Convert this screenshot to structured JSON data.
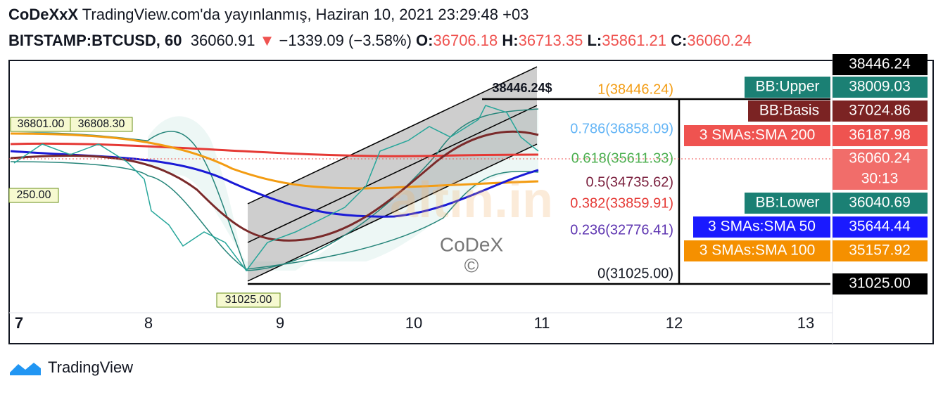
{
  "header": {
    "author": "CoDeXxX",
    "published": "TradingView.com'da yayınlanmış, Haziran 10, 2021 23:29:48 +03",
    "symbol": "BITSTAMP:BTCUSD, 60",
    "price": "36060.91",
    "arrow": "▼",
    "change": "−1339.09 (−3.58%)",
    "ohlc": [
      {
        "label": "O:",
        "value": "36706.18"
      },
      {
        "label": "H:",
        "value": "36713.35"
      },
      {
        "label": "L:",
        "value": "35861.21"
      },
      {
        "label": "C:",
        "value": "36060.24"
      }
    ]
  },
  "chart": {
    "x_labels": [
      "7",
      "8",
      "9",
      "10",
      "11",
      "12",
      "13"
    ],
    "fib_levels": [
      "1(38446.24)",
      "0.786(36858.09)",
      "0.618(35611.33)",
      "0.5(34735.62)",
      "0.382(33859.91)",
      "0.236(32776.41)",
      "0(31025.00)"
    ],
    "channel_label": "38446.24$",
    "point_labels": [
      "36801.00",
      "36808.30",
      "250.00",
      "31025.00"
    ],
    "watermark": [
      "CoDeX",
      "©"
    ],
    "axis_badges": [
      {
        "value": "38446.24"
      },
      {
        "name": "BB:Upper",
        "value": "38009.03"
      },
      {
        "name": "BB:Basis",
        "value": "37024.86"
      },
      {
        "name": "3 SMAs:SMA 200",
        "value": "36187.98"
      },
      {
        "value": "36060.24",
        "countdown": "30:13"
      },
      {
        "name": "BB:Lower",
        "value": "36040.69"
      },
      {
        "name": "3 SMAs:SMA 50",
        "value": "35644.44"
      },
      {
        "name": "3 SMAs:SMA 100",
        "value": "35157.92"
      },
      {
        "value": "31025.00"
      }
    ]
  },
  "footer": {
    "brand": "TradingView"
  }
}
